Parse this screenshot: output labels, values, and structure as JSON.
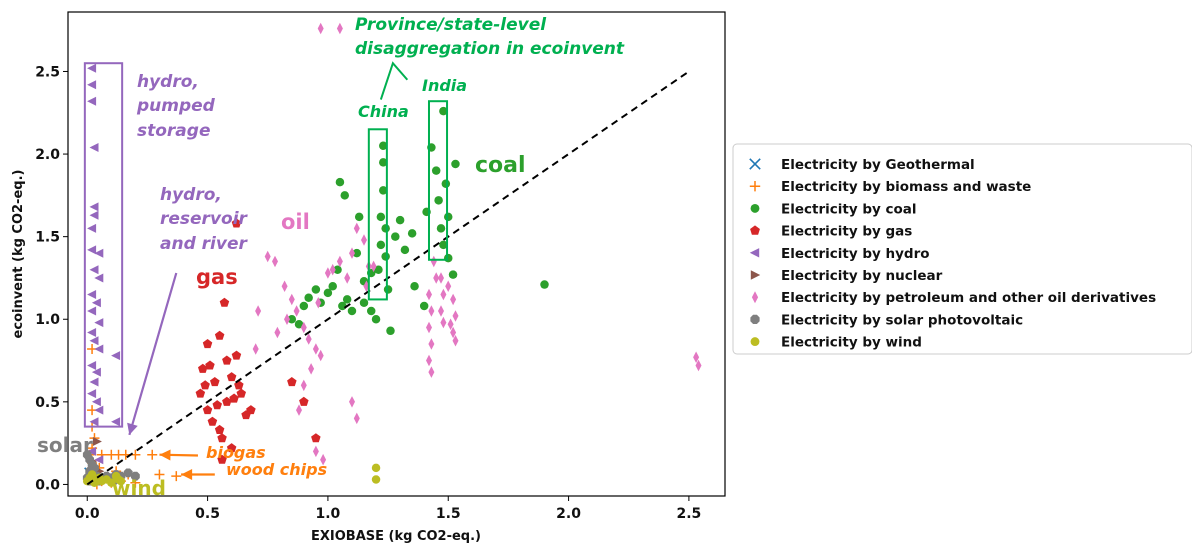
{
  "chart_data": {
    "type": "scatter",
    "xlabel": "EXIOBASE (kg CO2-eq.)",
    "ylabel": "ecoinvent (kg CO2-eq.)",
    "xlim": [
      -0.08,
      2.65
    ],
    "ylim": [
      -0.07,
      2.86
    ],
    "xticks": [
      0.0,
      0.5,
      1.0,
      1.5,
      2.0,
      2.5
    ],
    "yticks": [
      0.0,
      0.5,
      1.0,
      1.5,
      2.0,
      2.5
    ],
    "grid": false,
    "legend_position": "right, outside plot area",
    "reference_line": {
      "style": "dashed",
      "color": "#000000",
      "from": [
        0.0,
        0.0
      ],
      "to": [
        2.5,
        2.5
      ]
    },
    "series": [
      {
        "name": "Electricity by Geothermal",
        "marker": "x",
        "color": "#1f77b4",
        "points": [
          [
            0.01,
            0.07
          ],
          [
            0.03,
            0.05
          ]
        ]
      },
      {
        "name": "Electricity by biomass and waste",
        "marker": "plus",
        "color": "#ff7f0e",
        "points": [
          [
            0.02,
            0.82
          ],
          [
            0.02,
            0.45
          ],
          [
            0.02,
            0.35
          ],
          [
            0.03,
            0.28
          ],
          [
            0.02,
            0.22
          ],
          [
            0.01,
            0.18
          ],
          [
            0.06,
            0.18
          ],
          [
            0.1,
            0.18
          ],
          [
            0.13,
            0.18
          ],
          [
            0.16,
            0.18
          ],
          [
            0.2,
            0.18
          ],
          [
            0.27,
            0.18
          ],
          [
            0.02,
            0.13
          ],
          [
            0.05,
            0.1
          ],
          [
            0.12,
            0.08
          ],
          [
            0.17,
            0.06
          ],
          [
            0.3,
            0.06
          ],
          [
            0.37,
            0.05
          ],
          [
            0.06,
            0.02
          ],
          [
            0.1,
            0.01
          ],
          [
            0.14,
            0.02
          ],
          [
            0.2,
            0.01
          ],
          [
            0.04,
            0.0
          ]
        ]
      },
      {
        "name": "Electricity by coal",
        "marker": "circle",
        "color": "#2ca02c",
        "points": [
          [
            0.85,
            1.0
          ],
          [
            0.88,
            0.97
          ],
          [
            0.9,
            1.08
          ],
          [
            0.92,
            1.13
          ],
          [
            0.95,
            1.18
          ],
          [
            0.97,
            1.1
          ],
          [
            1.0,
            1.16
          ],
          [
            1.02,
            1.2
          ],
          [
            1.04,
            1.3
          ],
          [
            1.05,
            1.83
          ],
          [
            1.07,
            1.75
          ],
          [
            1.08,
            1.12
          ],
          [
            1.1,
            1.05
          ],
          [
            1.12,
            1.4
          ],
          [
            1.13,
            1.62
          ],
          [
            1.15,
            1.23
          ],
          [
            1.18,
            1.28
          ],
          [
            1.2,
            1.0
          ],
          [
            1.21,
            1.3
          ],
          [
            1.22,
            1.45
          ],
          [
            1.22,
            1.62
          ],
          [
            1.23,
            1.78
          ],
          [
            1.23,
            1.95
          ],
          [
            1.23,
            2.05
          ],
          [
            1.24,
            1.55
          ],
          [
            1.24,
            1.38
          ],
          [
            1.25,
            1.18
          ],
          [
            1.26,
            0.93
          ],
          [
            1.28,
            1.5
          ],
          [
            1.3,
            1.6
          ],
          [
            1.32,
            1.42
          ],
          [
            1.35,
            1.52
          ],
          [
            1.36,
            1.2
          ],
          [
            1.4,
            1.08
          ],
          [
            1.41,
            1.65
          ],
          [
            1.43,
            2.04
          ],
          [
            1.45,
            1.9
          ],
          [
            1.46,
            1.72
          ],
          [
            1.47,
            1.55
          ],
          [
            1.48,
            2.26
          ],
          [
            1.48,
            1.45
          ],
          [
            1.49,
            1.82
          ],
          [
            1.5,
            1.37
          ],
          [
            1.5,
            1.62
          ],
          [
            1.52,
            1.27
          ],
          [
            1.53,
            1.94
          ],
          [
            1.9,
            1.21
          ],
          [
            1.15,
            1.1
          ],
          [
            1.18,
            1.05
          ],
          [
            1.06,
            1.08
          ]
        ]
      },
      {
        "name": "Electricity by gas",
        "marker": "pentagon",
        "color": "#d62728",
        "points": [
          [
            0.62,
            1.58
          ],
          [
            0.57,
            1.1
          ],
          [
            0.5,
            0.85
          ],
          [
            0.48,
            0.7
          ],
          [
            0.47,
            0.55
          ],
          [
            0.5,
            0.45
          ],
          [
            0.52,
            0.38
          ],
          [
            0.55,
            0.33
          ],
          [
            0.58,
            0.5
          ],
          [
            0.6,
            0.65
          ],
          [
            0.62,
            0.78
          ],
          [
            0.64,
            0.55
          ],
          [
            0.66,
            0.42
          ],
          [
            0.55,
            0.9
          ],
          [
            0.58,
            0.75
          ],
          [
            0.53,
            0.62
          ],
          [
            0.56,
            0.28
          ],
          [
            0.6,
            0.22
          ],
          [
            0.56,
            0.15
          ],
          [
            0.68,
            0.45
          ],
          [
            0.49,
            0.6
          ],
          [
            0.61,
            0.52
          ],
          [
            0.63,
            0.6
          ],
          [
            0.51,
            0.72
          ],
          [
            0.54,
            0.48
          ],
          [
            0.9,
            0.5
          ],
          [
            0.95,
            0.28
          ],
          [
            0.85,
            0.62
          ]
        ]
      },
      {
        "name": "Electricity by hydro",
        "marker": "triangle-left",
        "color": "#9467bd",
        "points": [
          [
            0.02,
            2.52
          ],
          [
            0.02,
            2.42
          ],
          [
            0.02,
            2.32
          ],
          [
            0.03,
            2.04
          ],
          [
            0.03,
            1.68
          ],
          [
            0.03,
            1.63
          ],
          [
            0.02,
            1.55
          ],
          [
            0.02,
            1.42
          ],
          [
            0.05,
            1.4
          ],
          [
            0.03,
            1.3
          ],
          [
            0.05,
            1.25
          ],
          [
            0.02,
            1.15
          ],
          [
            0.04,
            1.1
          ],
          [
            0.02,
            1.05
          ],
          [
            0.05,
            0.98
          ],
          [
            0.02,
            0.92
          ],
          [
            0.03,
            0.87
          ],
          [
            0.05,
            0.82
          ],
          [
            0.02,
            0.72
          ],
          [
            0.04,
            0.68
          ],
          [
            0.03,
            0.62
          ],
          [
            0.02,
            0.55
          ],
          [
            0.04,
            0.5
          ],
          [
            0.05,
            0.45
          ],
          [
            0.03,
            0.38
          ],
          [
            0.12,
            0.38
          ],
          [
            0.02,
            0.2
          ],
          [
            0.05,
            0.15
          ],
          [
            0.12,
            0.78
          ]
        ]
      },
      {
        "name": "Electricity by nuclear",
        "marker": "triangle-right",
        "color": "#8c564b",
        "points": [
          [
            0.02,
            0.14
          ],
          [
            0.03,
            0.11
          ],
          [
            0.04,
            0.26
          ],
          [
            0.05,
            0.08
          ]
        ]
      },
      {
        "name": "Electricity by petroleum and other oil derivatives",
        "marker": "diamond",
        "color": "#e377c2",
        "points": [
          [
            0.97,
            2.76
          ],
          [
            1.05,
            2.76
          ],
          [
            0.75,
            1.38
          ],
          [
            0.78,
            1.35
          ],
          [
            0.82,
            1.2
          ],
          [
            0.85,
            1.12
          ],
          [
            0.87,
            1.05
          ],
          [
            0.9,
            0.95
          ],
          [
            0.92,
            0.88
          ],
          [
            0.95,
            0.82
          ],
          [
            0.97,
            0.78
          ],
          [
            1.0,
            1.28
          ],
          [
            1.02,
            1.3
          ],
          [
            1.05,
            1.35
          ],
          [
            1.08,
            1.25
          ],
          [
            1.1,
            1.4
          ],
          [
            1.12,
            1.55
          ],
          [
            1.15,
            1.48
          ],
          [
            1.17,
            1.32
          ],
          [
            0.88,
            0.45
          ],
          [
            0.9,
            0.6
          ],
          [
            0.93,
            0.7
          ],
          [
            1.1,
            0.5
          ],
          [
            1.12,
            0.4
          ],
          [
            0.95,
            0.2
          ],
          [
            0.98,
            0.15
          ],
          [
            1.42,
            1.15
          ],
          [
            1.43,
            1.05
          ],
          [
            1.42,
            0.95
          ],
          [
            1.43,
            0.85
          ],
          [
            1.42,
            0.75
          ],
          [
            1.43,
            0.68
          ],
          [
            1.47,
            1.25
          ],
          [
            1.48,
            1.15
          ],
          [
            1.47,
            1.05
          ],
          [
            1.48,
            0.98
          ],
          [
            1.52,
            1.12
          ],
          [
            1.53,
            1.02
          ],
          [
            1.52,
            0.92
          ],
          [
            1.53,
            0.87
          ],
          [
            1.44,
            1.35
          ],
          [
            1.45,
            1.25
          ],
          [
            2.53,
            0.77
          ],
          [
            2.54,
            0.72
          ],
          [
            0.71,
            1.05
          ],
          [
            0.7,
            0.82
          ],
          [
            0.79,
            0.92
          ],
          [
            0.83,
            1.0
          ],
          [
            0.96,
            1.1
          ],
          [
            1.16,
            1.2
          ],
          [
            1.19,
            1.32
          ],
          [
            1.5,
            1.2
          ],
          [
            1.51,
            0.97
          ]
        ]
      },
      {
        "name": "Electricity by solar photovoltaic",
        "marker": "octagon",
        "color": "#7f7f7f",
        "points": [
          [
            0.0,
            0.18
          ],
          [
            0.01,
            0.15
          ],
          [
            0.02,
            0.12
          ],
          [
            0.03,
            0.1
          ],
          [
            0.01,
            0.08
          ],
          [
            0.02,
            0.06
          ],
          [
            0.04,
            0.05
          ],
          [
            0.0,
            0.04
          ],
          [
            0.03,
            0.03
          ],
          [
            0.06,
            0.04
          ],
          [
            0.08,
            0.05
          ],
          [
            0.1,
            0.04
          ],
          [
            0.12,
            0.06
          ],
          [
            0.14,
            0.05
          ],
          [
            0.17,
            0.07
          ],
          [
            0.2,
            0.05
          ],
          [
            0.05,
            0.02
          ],
          [
            0.01,
            0.02
          ],
          [
            0.11,
            0.02
          ]
        ]
      },
      {
        "name": "Electricity by wind",
        "marker": "circle",
        "color": "#bcbd22",
        "points": [
          [
            0.0,
            0.02
          ],
          [
            0.01,
            0.04
          ],
          [
            0.02,
            0.03
          ],
          [
            0.03,
            0.01
          ],
          [
            0.04,
            0.02
          ],
          [
            0.05,
            0.04
          ],
          [
            0.06,
            0.02
          ],
          [
            0.08,
            0.03
          ],
          [
            0.1,
            0.01
          ],
          [
            0.12,
            0.05
          ],
          [
            0.13,
            0.03
          ],
          [
            0.14,
            0.02
          ],
          [
            0.02,
            0.06
          ],
          [
            1.2,
            0.1
          ],
          [
            1.2,
            0.03
          ]
        ]
      }
    ],
    "annotations": [
      {
        "text": "Province/state-level",
        "color": "#00b050"
      },
      {
        "text": "disaggregation in ecoinvent",
        "color": "#00b050"
      },
      {
        "text": "China",
        "color": "#00b050"
      },
      {
        "text": "India",
        "color": "#00b050"
      },
      {
        "text": "coal",
        "color": "#2ca02c"
      },
      {
        "text": "hydro,",
        "color": "#9467bd"
      },
      {
        "text": "pumped",
        "color": "#9467bd"
      },
      {
        "text": "storage",
        "color": "#9467bd"
      },
      {
        "text": "hydro,",
        "color": "#9467bd"
      },
      {
        "text": "reservoir",
        "color": "#9467bd"
      },
      {
        "text": "and river",
        "color": "#9467bd"
      },
      {
        "text": "oil",
        "color": "#e377c2"
      },
      {
        "text": "gas",
        "color": "#d62728"
      },
      {
        "text": "solar",
        "color": "#7f7f7f"
      },
      {
        "text": "biogas",
        "color": "#ff7f0e"
      },
      {
        "text": "wood chips",
        "color": "#ff7f0e"
      },
      {
        "text": "wind",
        "color": "#bcbd22"
      }
    ]
  }
}
